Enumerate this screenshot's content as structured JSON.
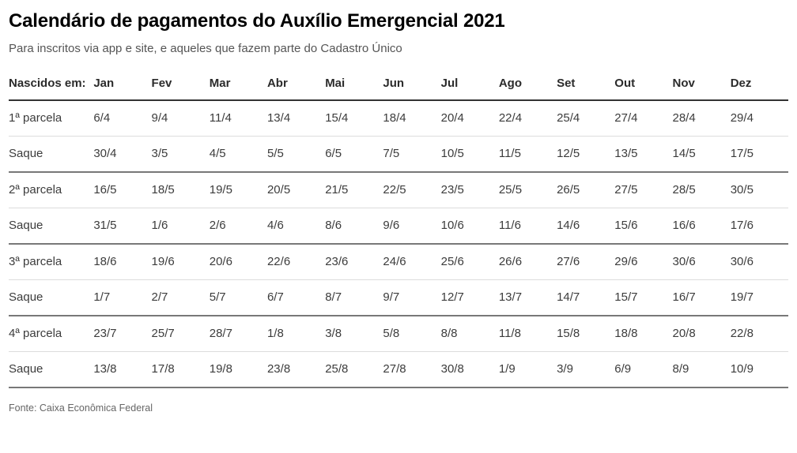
{
  "chart_data": {
    "type": "table",
    "title": "Calendário de pagamentos do Auxílio Emergencial 2021",
    "subtitle": "Para inscritos via app e site, e aqueles que fazem parte do Cadastro Único",
    "corner_label": "Nascidos em:",
    "columns": [
      "Jan",
      "Fev",
      "Mar",
      "Abr",
      "Mai",
      "Jun",
      "Jul",
      "Ago",
      "Set",
      "Out",
      "Nov",
      "Dez"
    ],
    "rows": [
      {
        "label": "1ª parcela",
        "divider": "light",
        "values": [
          "6/4",
          "9/4",
          "11/4",
          "13/4",
          "15/4",
          "18/4",
          "20/4",
          "22/4",
          "25/4",
          "27/4",
          "28/4",
          "29/4"
        ]
      },
      {
        "label": "Saque",
        "divider": "dark",
        "values": [
          "30/4",
          "3/5",
          "4/5",
          "5/5",
          "6/5",
          "7/5",
          "10/5",
          "11/5",
          "12/5",
          "13/5",
          "14/5",
          "17/5"
        ]
      },
      {
        "label": "2ª parcela",
        "divider": "light",
        "values": [
          "16/5",
          "18/5",
          "19/5",
          "20/5",
          "21/5",
          "22/5",
          "23/5",
          "25/5",
          "26/5",
          "27/5",
          "28/5",
          "30/5"
        ]
      },
      {
        "label": "Saque",
        "divider": "dark",
        "values": [
          "31/5",
          "1/6",
          "2/6",
          "4/6",
          "8/6",
          "9/6",
          "10/6",
          "11/6",
          "14/6",
          "15/6",
          "16/6",
          "17/6"
        ]
      },
      {
        "label": "3ª parcela",
        "divider": "light",
        "values": [
          "18/6",
          "19/6",
          "20/6",
          "22/6",
          "23/6",
          "24/6",
          "25/6",
          "26/6",
          "27/6",
          "29/6",
          "30/6",
          "30/6"
        ]
      },
      {
        "label": "Saque",
        "divider": "dark",
        "values": [
          "1/7",
          "2/7",
          "5/7",
          "6/7",
          "8/7",
          "9/7",
          "12/7",
          "13/7",
          "14/7",
          "15/7",
          "16/7",
          "19/7"
        ]
      },
      {
        "label": "4ª parcela",
        "divider": "light",
        "values": [
          "23/7",
          "25/7",
          "28/7",
          "1/8",
          "3/8",
          "5/8",
          "8/8",
          "11/8",
          "15/8",
          "18/8",
          "20/8",
          "22/8"
        ]
      },
      {
        "label": "Saque",
        "divider": "dark",
        "values": [
          "13/8",
          "17/8",
          "19/8",
          "23/8",
          "25/8",
          "27/8",
          "30/8",
          "1/9",
          "3/9",
          "6/9",
          "8/9",
          "10/9"
        ]
      }
    ],
    "source": "Fonte: Caixa Econômica Federal",
    "layout": {
      "grid": "horizontal-rules-only",
      "header_rule": "strong",
      "saque_rule": "dark",
      "parcela_rule": "light"
    }
  },
  "colors": {
    "title": "#000000",
    "subtitle": "#555555",
    "text": "#3c3c3c",
    "header_rule": "#333333",
    "dark_divider": "#787878",
    "light_divider": "#dcdcdc",
    "source": "#666666",
    "background": "#ffffff"
  }
}
